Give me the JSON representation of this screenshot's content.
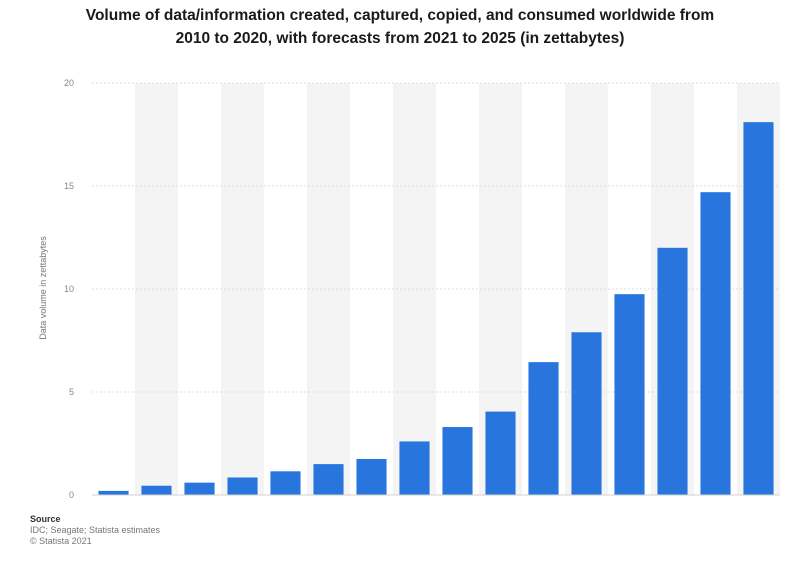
{
  "chart_data": {
    "type": "bar",
    "title": "Volume of data/information created, captured, copied, and consumed worldwide from 2010 to 2020, with forecasts from 2021 to 2025 (in zettabytes)",
    "title_lines": [
      "Volume of data/information created, captured, copied, and consumed worldwide from",
      "2010 to 2020, with forecasts from 2021 to 2025 (in zettabytes)"
    ],
    "xlabel": "",
    "ylabel": "Data volume in zettabytes",
    "ylim": [
      0,
      20
    ],
    "ytick_labels": [
      "0",
      "5",
      "10",
      "15",
      "20"
    ],
    "grid": true,
    "legend": "none",
    "bar_color": "#2876dd",
    "band_color": "#f4f4f4",
    "categories": [
      "",
      "",
      "",
      "",
      "",
      "",
      "",
      "",
      "",
      "",
      "",
      "",
      "",
      "",
      "",
      ""
    ],
    "values": [
      0.2,
      0.45,
      0.6,
      0.85,
      1.15,
      1.5,
      1.75,
      2.6,
      3.3,
      4.05,
      6.45,
      7.9,
      9.75,
      12.0,
      14.7,
      18.1
    ]
  },
  "source": {
    "heading": "Source",
    "lines": [
      "IDC; Seagate; Statista estimates",
      "© Statista 2021"
    ]
  }
}
